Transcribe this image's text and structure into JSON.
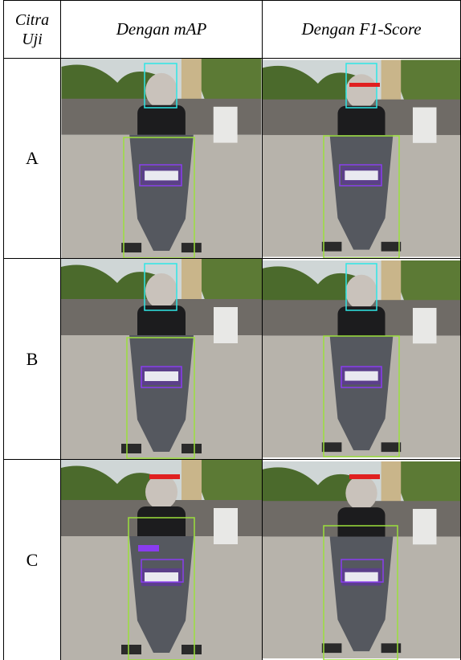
{
  "table": {
    "header": [
      [
        "Citra",
        "Uji"
      ],
      "Dengan mAP",
      "Dengan F1-Score"
    ],
    "rows": [
      [
        "A"
      ],
      [
        "B"
      ],
      [
        "C"
      ]
    ]
  }
}
